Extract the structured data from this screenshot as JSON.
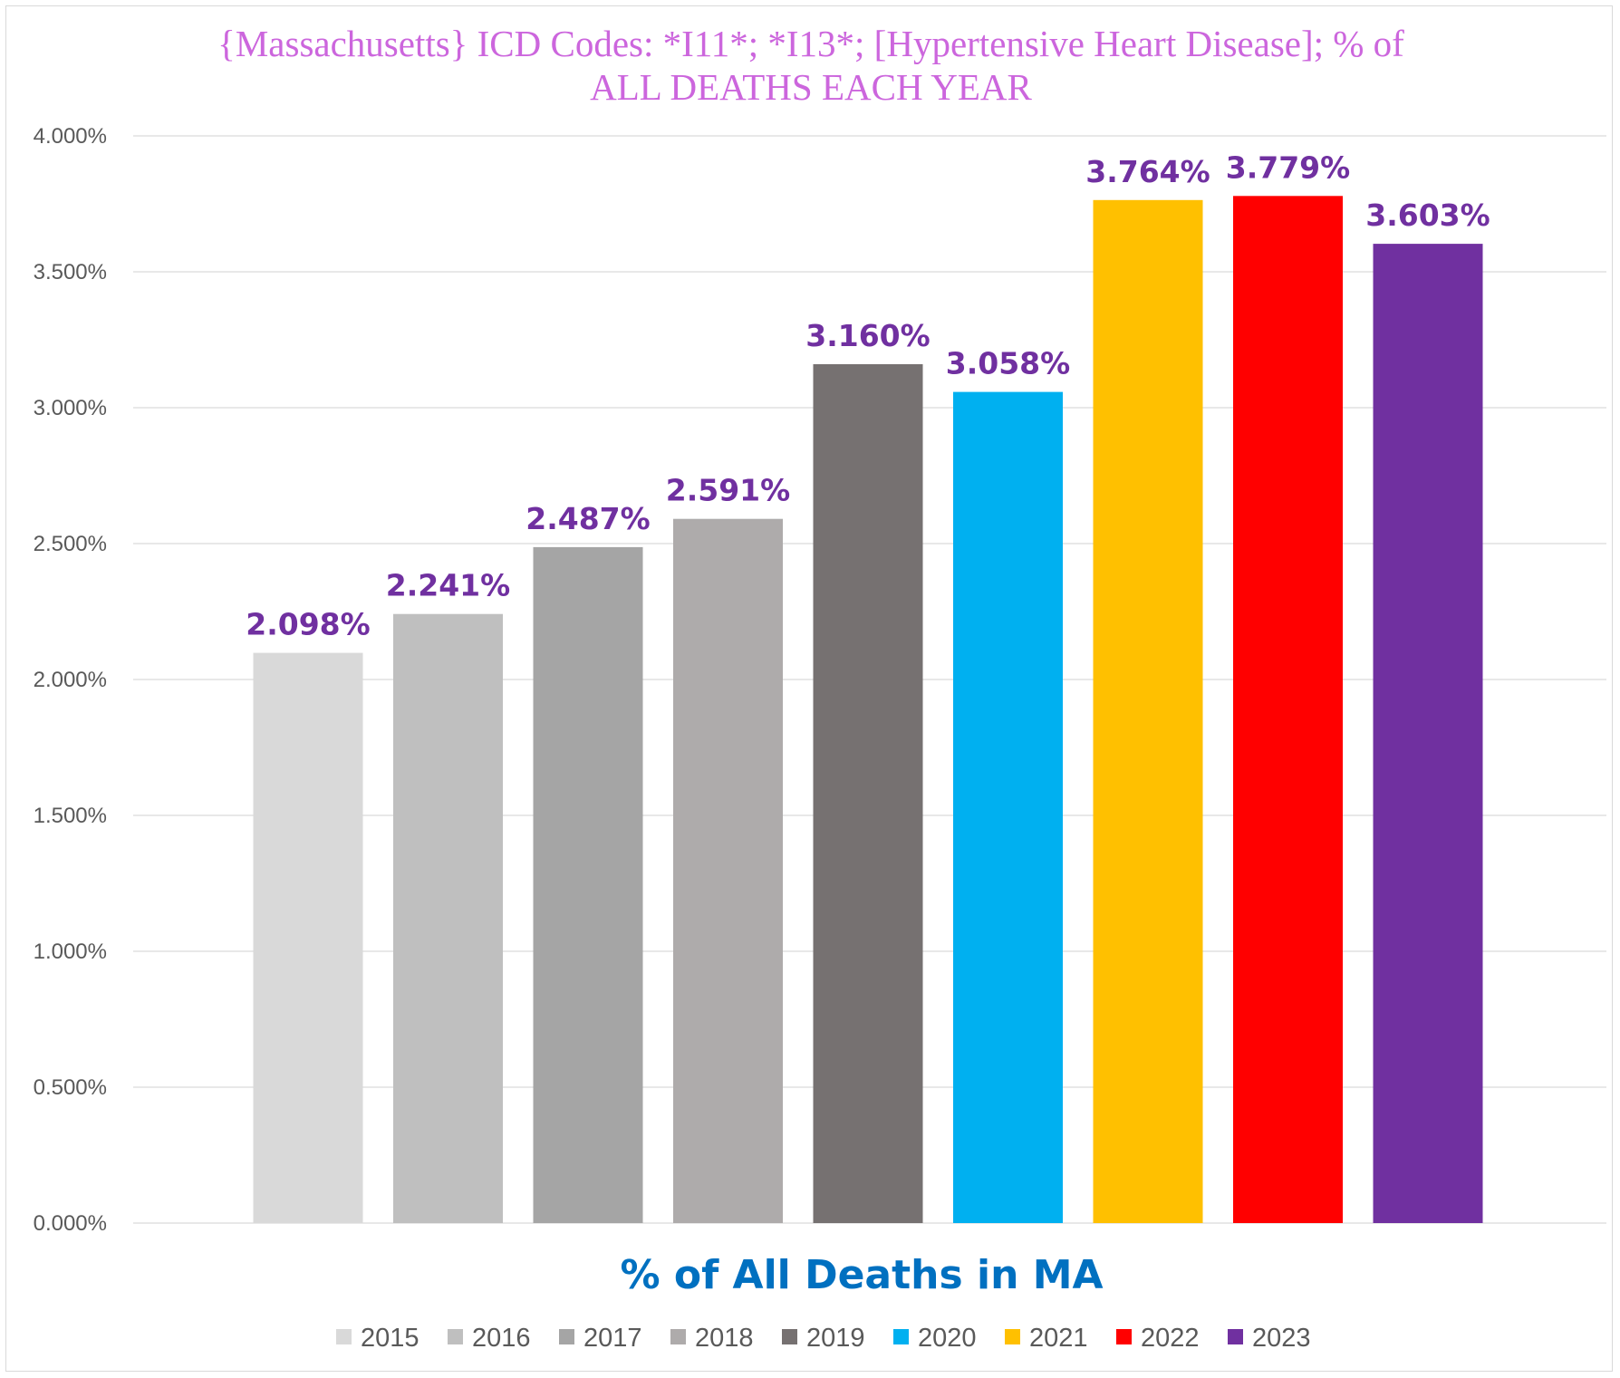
{
  "chart_data": {
    "type": "bar",
    "title_line1": "{Massachusetts}  ICD Codes: *I11*; *I13*;  [Hypertensive Heart Disease]; % of",
    "title_line2": "ALL DEATHS EACH YEAR",
    "xlabel": "% of All Deaths in MA",
    "ylabel": "",
    "ylim": [
      0,
      4
    ],
    "y_ticks": [
      {
        "value": 0,
        "label": "0.000%"
      },
      {
        "value": 0.5,
        "label": "0.500%"
      },
      {
        "value": 1,
        "label": "1.000%"
      },
      {
        "value": 1.5,
        "label": "1.500%"
      },
      {
        "value": 2,
        "label": "2.000%"
      },
      {
        "value": 2.5,
        "label": "2.500%"
      },
      {
        "value": 3,
        "label": "3.000%"
      },
      {
        "value": 3.5,
        "label": "3.500%"
      },
      {
        "value": 4,
        "label": "4.000%"
      }
    ],
    "grid": true,
    "legend_position": "bottom",
    "series": [
      {
        "name": "2015",
        "value": 2.098,
        "label": "2.098%",
        "color": "#d9d9d9"
      },
      {
        "name": "2016",
        "value": 2.241,
        "label": "2.241%",
        "color": "#bfbfbf"
      },
      {
        "name": "2017",
        "value": 2.487,
        "label": "2.487%",
        "color": "#a5a5a5"
      },
      {
        "name": "2018",
        "value": 2.591,
        "label": "2.591%",
        "color": "#aeabab"
      },
      {
        "name": "2019",
        "value": 3.16,
        "label": "3.160%",
        "color": "#767171"
      },
      {
        "name": "2020",
        "value": 3.058,
        "label": "3.058%",
        "color": "#00b0f0"
      },
      {
        "name": "2021",
        "value": 3.764,
        "label": "3.764%",
        "color": "#ffc000"
      },
      {
        "name": "2022",
        "value": 3.779,
        "label": "3.779%",
        "color": "#ff0000"
      },
      {
        "name": "2023",
        "value": 3.603,
        "label": "3.603%",
        "color": "#7030a0"
      }
    ]
  }
}
